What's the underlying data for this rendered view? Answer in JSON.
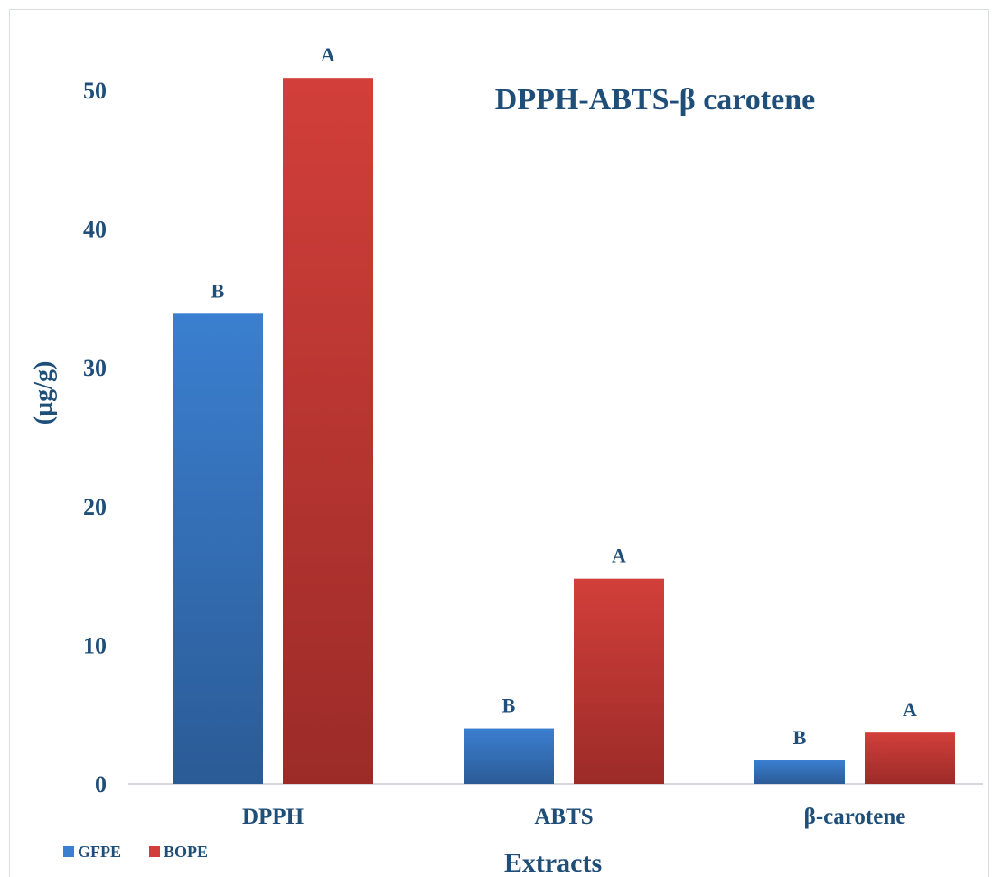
{
  "chart_data": {
    "type": "bar",
    "title": "DPPH-ABTS-β carotene",
    "xlabel": "Extracts",
    "ylabel": "(µg/g)",
    "categories": [
      "DPPH",
      "ABTS",
      "β-carotene"
    ],
    "series": [
      {
        "name": "GFPE",
        "values": [
          33.9,
          4.0,
          1.7
        ],
        "labels": [
          "B",
          "B",
          "B"
        ],
        "color_top": "#3b7fd0",
        "color_bottom": "#2b5b96"
      },
      {
        "name": "BOPE",
        "values": [
          50.9,
          14.8,
          3.7
        ],
        "labels": [
          "A",
          "A",
          "A"
        ],
        "color_top": "#d23f3a",
        "color_bottom": "#9c2b28"
      }
    ],
    "ylim": [
      0,
      50
    ],
    "yticks": [
      "0",
      "10",
      "20",
      "30",
      "40",
      "50"
    ],
    "grid": false,
    "legend_position": "bottom-left"
  }
}
